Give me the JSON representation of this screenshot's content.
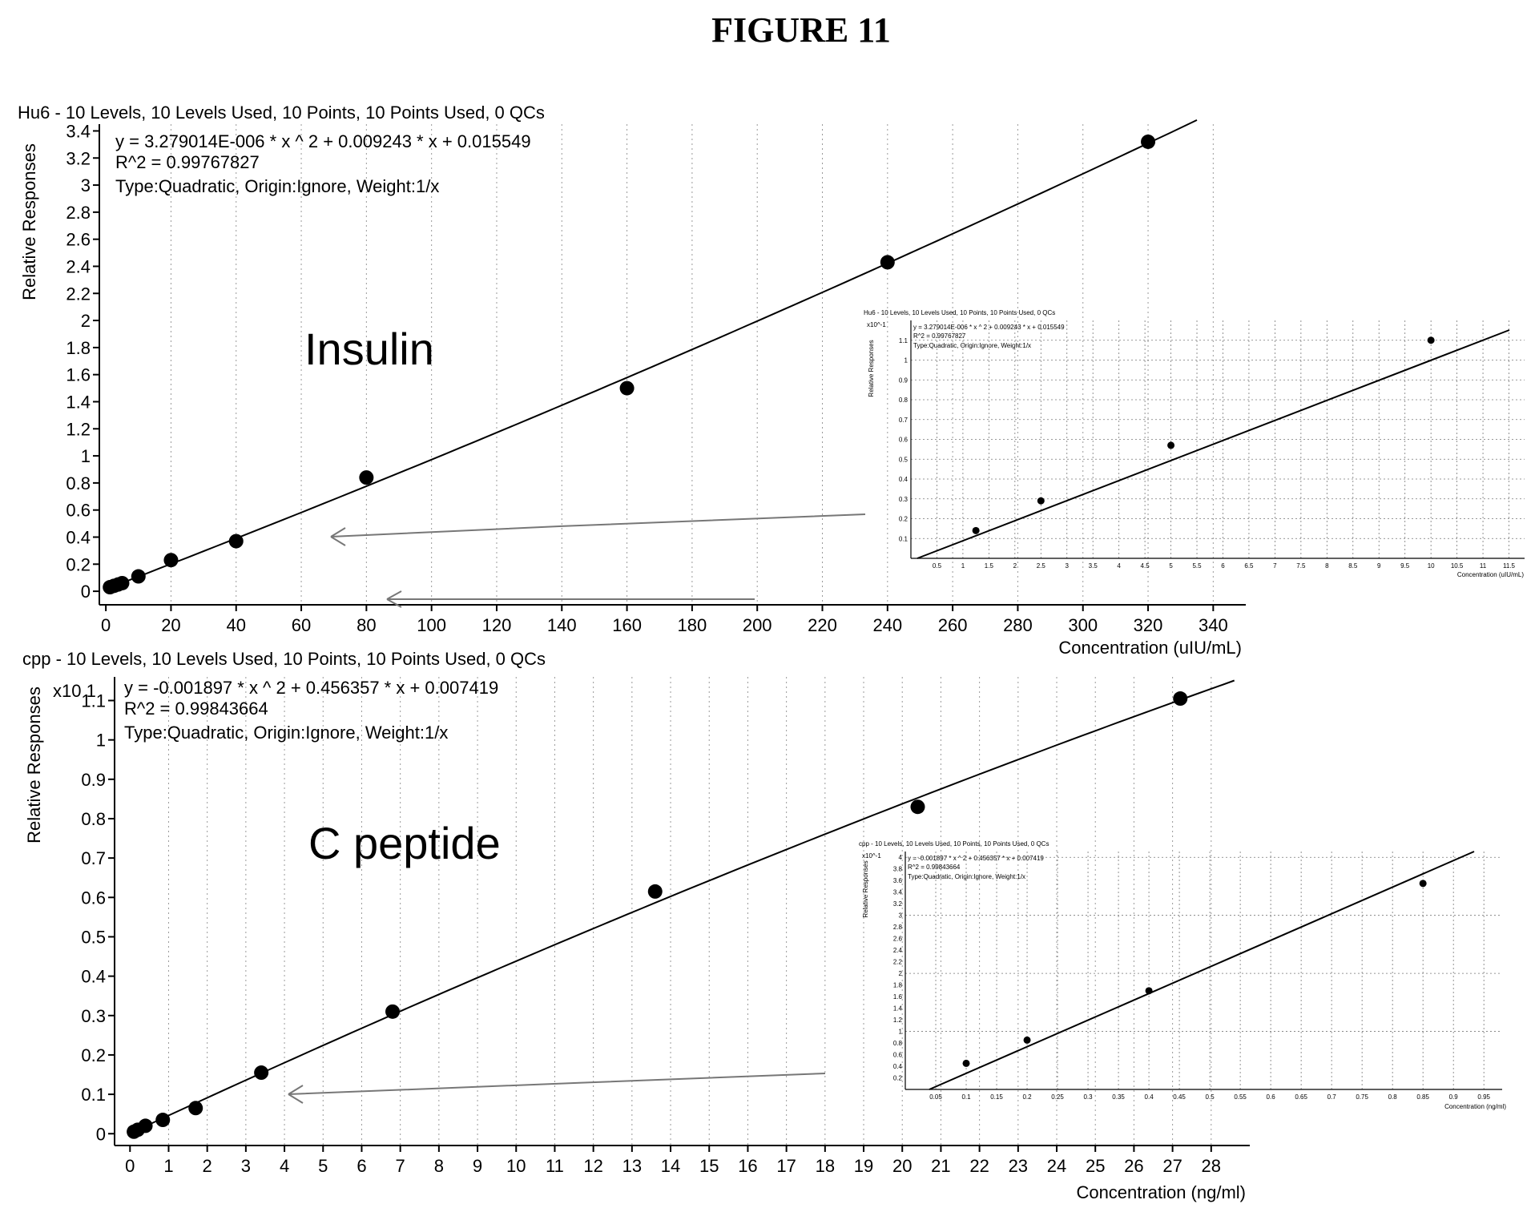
{
  "figure_title": "FIGURE 11",
  "chart_data": [
    {
      "type": "scatter",
      "title": "Hu6 - 10 Levels, 10 Levels Used, 10 Points, 10 Points Used, 0 QCs",
      "annotation": "Insulin",
      "equation": "y = 3.279014E-006 * x ^ 2 + 0.009243 * x + 0.015549",
      "r2": "R^2 = 0.99767827",
      "fit_type": "Type:Quadratic, Origin:Ignore, Weight:1/x",
      "xlabel": "Concentration (uIU/mL)",
      "ylabel": "Relative Responses",
      "y_multiplier": "",
      "xlim": [
        -2,
        350
      ],
      "ylim": [
        -0.1,
        3.45
      ],
      "xticks": [
        0,
        20,
        40,
        60,
        80,
        100,
        120,
        140,
        160,
        180,
        200,
        220,
        240,
        260,
        280,
        300,
        320,
        340
      ],
      "yticks": [
        0,
        0.2,
        0.4,
        0.6,
        0.8,
        1,
        1.2,
        1.4,
        1.6,
        1.8,
        2,
        2.2,
        2.4,
        2.6,
        2.8,
        3,
        3.2,
        3.4
      ],
      "fit": {
        "a": 3.279014e-06,
        "b": 0.009243,
        "c": 0.015549,
        "x_range": [
          0,
          335
        ]
      },
      "points": [
        {
          "x": 1.25,
          "y": 0.03
        },
        {
          "x": 2.5,
          "y": 0.04
        },
        {
          "x": 3.75,
          "y": 0.05
        },
        {
          "x": 5,
          "y": 0.06
        },
        {
          "x": 10,
          "y": 0.11
        },
        {
          "x": 20,
          "y": 0.23
        },
        {
          "x": 40,
          "y": 0.37
        },
        {
          "x": 80,
          "y": 0.84
        },
        {
          "x": 160,
          "y": 1.5
        },
        {
          "x": 240,
          "y": 2.43
        },
        {
          "x": 320,
          "y": 3.32
        }
      ],
      "inset": {
        "title": "Hu6 - 10 Levels, 10 Levels Used, 10 Points, 10 Points Used, 0 QCs",
        "multiplier": "x10^-1",
        "equation": "y = 3.279014E-006 * x ^ 2 + 0.009243 * x + 0.015549",
        "r2": "R^2 = 0.99767827",
        "fit_type": "Type:Quadratic, Origin:Ignore, Weight:1/x",
        "xlabel": "Concentration (uIU/mL)",
        "ylabel": "Relative Responses",
        "xticks": [
          "0.5",
          "1",
          "1.5",
          "2",
          "2.5",
          "3",
          "3.5",
          "4",
          "4.5",
          "5",
          "5.5",
          "6",
          "6.5",
          "7",
          "7.5",
          "8",
          "8.5",
          "9",
          "9.5",
          "10",
          "10.5",
          "11",
          "11.5"
        ],
        "yticks": [
          "0.1",
          "0.2",
          "0.3",
          "0.4",
          "0.5",
          "0.6",
          "0.7",
          "0.8",
          "0.9",
          "1",
          "1.1"
        ],
        "points": [
          {
            "x": 1.25,
            "y": 0.14
          },
          {
            "x": 2.5,
            "y": 0.29
          },
          {
            "x": 5,
            "y": 0.57
          },
          {
            "x": 10,
            "y": 1.1
          }
        ]
      }
    },
    {
      "type": "scatter",
      "title": "cpp - 10 Levels, 10 Levels Used, 10 Points, 10 Points Used, 0 QCs",
      "annotation": "C peptide",
      "equation": "y = -0.001897 * x ^ 2 + 0.456357 * x + 0.007419",
      "r2": "R^2 = 0.99843664",
      "fit_type": "Type:Quadratic, Origin:Ignore, Weight:1/x",
      "xlabel": "Concentration (ng/ml)",
      "ylabel": "Relative Responses",
      "y_multiplier": "x10 1",
      "xlim": [
        -0.4,
        29
      ],
      "ylim": [
        -0.03,
        1.16
      ],
      "xticks": [
        0,
        1,
        2,
        3,
        4,
        5,
        6,
        7,
        8,
        9,
        10,
        11,
        12,
        13,
        14,
        15,
        16,
        17,
        18,
        19,
        20,
        21,
        22,
        23,
        24,
        25,
        26,
        27,
        28
      ],
      "yticks": [
        0,
        0.1,
        0.2,
        0.3,
        0.4,
        0.5,
        0.6,
        0.7,
        0.8,
        0.9,
        1,
        1.1
      ],
      "fit": {
        "a": -0.0001897,
        "b": 0.0456357,
        "c": 0.0007419,
        "x_range": [
          0,
          28.6
        ]
      },
      "points": [
        {
          "x": 0.1,
          "y": 0.005
        },
        {
          "x": 0.2,
          "y": 0.01
        },
        {
          "x": 0.4,
          "y": 0.02
        },
        {
          "x": 0.85,
          "y": 0.035
        },
        {
          "x": 1.7,
          "y": 0.065
        },
        {
          "x": 3.4,
          "y": 0.155
        },
        {
          "x": 6.8,
          "y": 0.31
        },
        {
          "x": 13.6,
          "y": 0.615
        },
        {
          "x": 20.4,
          "y": 0.83
        },
        {
          "x": 27.2,
          "y": 1.105
        }
      ],
      "inset": {
        "title": "cpp - 10 Levels, 10 Levels Used, 10 Points, 10 Points Used, 0 QCs",
        "multiplier": "x10^-1",
        "equation": "y = -0.001897 * x ^ 2 + 0.456357 * x + 0.007419",
        "r2": "R^2 = 0.99843664",
        "fit_type": "Type:Quadratic, Origin:Ignore, Weight:1/x",
        "xlabel": "Concentration (ng/ml)",
        "ylabel": "Relative Responses",
        "xticks": [
          "0.05",
          "0.1",
          "0.15",
          "0.2",
          "0.25",
          "0.3",
          "0.35",
          "0.4",
          "0.45",
          "0.5",
          "0.55",
          "0.6",
          "0.65",
          "0.7",
          "0.75",
          "0.8",
          "0.85",
          "0.9",
          "0.95"
        ],
        "yticks": [
          "0.2",
          "0.4",
          "0.6",
          "0.8",
          "1",
          "1.2",
          "1.4",
          "1.6",
          "1.8",
          "2",
          "2.2",
          "2.4",
          "2.6",
          "2.8",
          "3",
          "3.2",
          "3.4",
          "3.6",
          "3.8",
          "4"
        ],
        "points": [
          {
            "x": 0.1,
            "y": 0.45
          },
          {
            "x": 0.2,
            "y": 0.85
          },
          {
            "x": 0.4,
            "y": 1.7
          },
          {
            "x": 0.85,
            "y": 3.55
          }
        ]
      }
    }
  ]
}
